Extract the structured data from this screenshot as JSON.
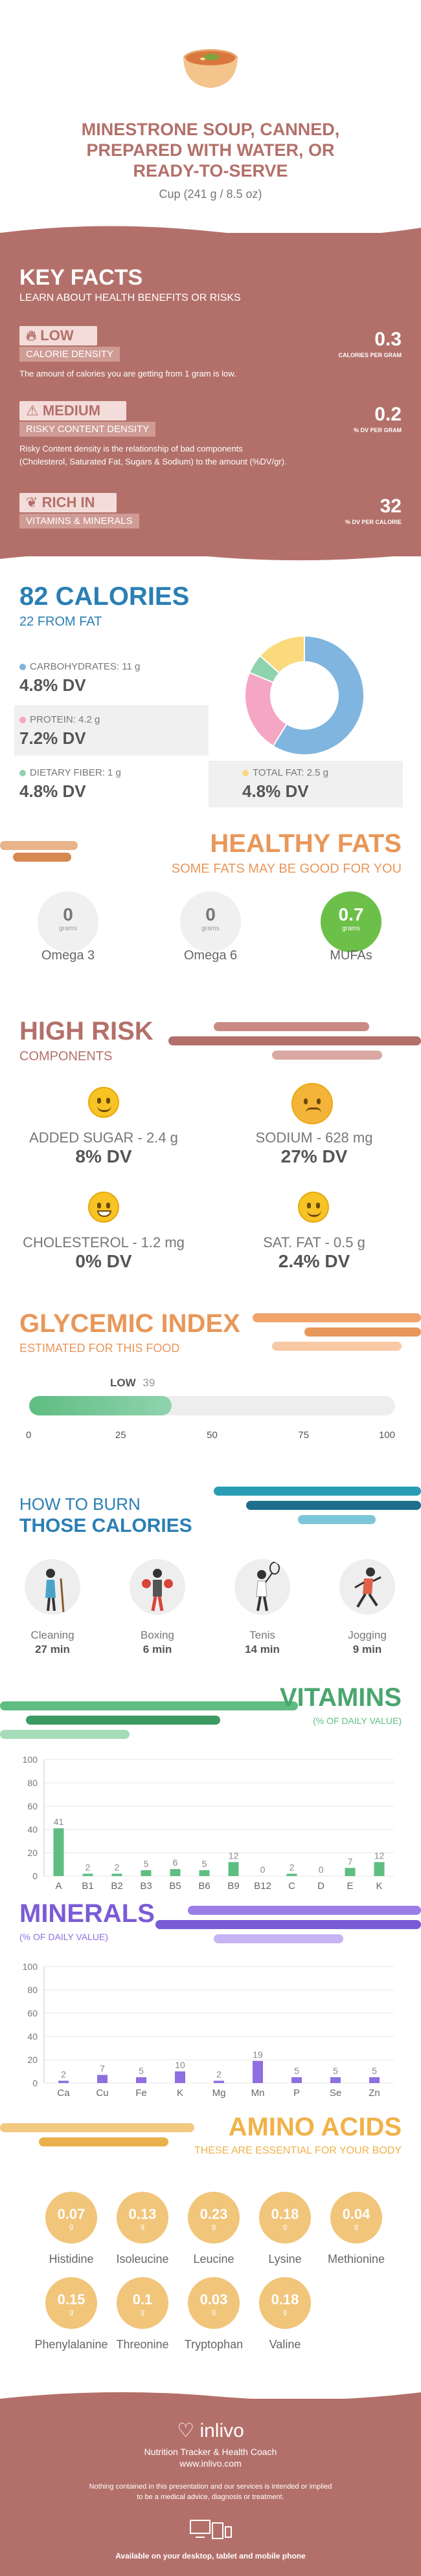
{
  "header": {
    "title_lines": [
      "MINESTRONE SOUP, CANNED,",
      "PREPARED WITH WATER, OR",
      "READY-TO-SERVE"
    ],
    "serving": "Cup (241 g / 8.5 oz)"
  },
  "key_facts": {
    "title": "KEY FACTS",
    "subtitle": "LEARN ABOUT HEALTH BENEFITS OR RISKS",
    "items": [
      {
        "level": "LOW",
        "label": "CALORIE DENSITY",
        "desc_lines": [
          "The amount of calories you are getting from 1 gram is low."
        ],
        "value": "0.3",
        "unit": "CALORIES PER GRAM"
      },
      {
        "level": "MEDIUM",
        "label": "RISKY CONTENT DENSITY",
        "desc_lines": [
          "Risky Content density is the relationship of bad components",
          "(Cholesterol, Saturated Fat, Sugars & Sodium) to the amount (%DV/gr)."
        ],
        "value": "0.2",
        "unit": "% DV PER GRAM"
      },
      {
        "level": "RICH  IN",
        "label": "VITAMINS & MINERALS",
        "desc_lines": [],
        "value": "32",
        "unit": "% DV PER CALORIE"
      }
    ]
  },
  "calories": {
    "title": "82 CALORIES",
    "subtitle": "22 FROM FAT",
    "macros": [
      {
        "label": "CARBOHYDRATES: 11 g",
        "dv": "4.8% DV",
        "color": "#7fb5de"
      },
      {
        "label": "PROTEIN: 4.2 g",
        "dv": "7.2% DV",
        "color": "#f4a6c4"
      },
      {
        "label": "DIETARY FIBER: 1 g",
        "dv": "4.8% DV",
        "color": "#8fd3ae"
      },
      {
        "label": "TOTAL FAT: 2.5 g",
        "dv": "4.8% DV",
        "color": "#fbd97c"
      }
    ],
    "chart_data": {
      "type": "pie",
      "labels": [
        "Carbohydrates",
        "Protein",
        "Dietary Fiber",
        "Total Fat"
      ],
      "values": [
        11,
        4.2,
        1,
        2.5
      ],
      "colors": [
        "#7fb5de",
        "#f4a6c4",
        "#8fd3ae",
        "#fbd97c"
      ]
    }
  },
  "healthy_fats": {
    "title": "HEALTHY FATS",
    "subtitle": "SOME FATS MAY BE GOOD FOR YOU",
    "items": [
      {
        "name": "Omega 3",
        "value": "0",
        "unit": "grams"
      },
      {
        "name": "Omega 6",
        "value": "0",
        "unit": "grams"
      },
      {
        "name": "MUFAs",
        "value": "0.7",
        "unit": "grams"
      }
    ],
    "highlight_color": "#6cc04a"
  },
  "high_risk": {
    "title": "HIGH RISK",
    "subtitle": "COMPONENTS",
    "items": [
      {
        "name": "ADDED SUGAR - 2.4 g",
        "dv": "8% DV"
      },
      {
        "name": "SODIUM - 628 mg",
        "dv": "27% DV"
      },
      {
        "name": "CHOLESTEROL - 1.2 mg",
        "dv": "0% DV"
      },
      {
        "name": "SAT. FAT - 0.5 g",
        "dv": "2.4% DV"
      }
    ]
  },
  "glycemic": {
    "title": "GLYCEMIC INDEX",
    "subtitle": "ESTIMATED FOR THIS FOOD",
    "level": "LOW",
    "value": 39,
    "value_label": "39",
    "ticks": [
      "0",
      "25",
      "50",
      "75",
      "100"
    ]
  },
  "burn": {
    "title_line1": "HOW TO BURN",
    "title_line2": "THOSE CALORIES",
    "activities": [
      {
        "name": "Cleaning",
        "minutes": "27 min",
        "icon": "cleaning-person-icon"
      },
      {
        "name": "Boxing",
        "minutes": "6 min",
        "icon": "boxing-person-icon"
      },
      {
        "name": "Tenis",
        "minutes": "14 min",
        "icon": "tennis-person-icon"
      },
      {
        "name": "Jogging",
        "minutes": "9 min",
        "icon": "jogging-person-icon"
      }
    ]
  },
  "vitamins": {
    "title": "VITAMINS",
    "subtitle": "(% OF DAILY VALUE)",
    "chart_data": {
      "type": "bar",
      "categories": [
        "A",
        "B1",
        "B2",
        "B3",
        "B5",
        "B6",
        "B9",
        "B12",
        "C",
        "D",
        "E",
        "K"
      ],
      "values": [
        41,
        2,
        2,
        5,
        6,
        5,
        12,
        0,
        2,
        0,
        7,
        12
      ],
      "ylim": [
        0,
        100
      ],
      "yticks": [
        0,
        20,
        40,
        60,
        80,
        100
      ],
      "color": "#5fbd82"
    }
  },
  "minerals": {
    "title": "MINERALS",
    "subtitle": "(% OF DAILY VALUE)",
    "chart_data": {
      "type": "bar",
      "categories": [
        "Ca",
        "Cu",
        "Fe",
        "K",
        "Mg",
        "Mn",
        "P",
        "Se",
        "Zn"
      ],
      "values": [
        2,
        7,
        5,
        10,
        2,
        19,
        5,
        5,
        5
      ],
      "ylim": [
        0,
        100
      ],
      "yticks": [
        0,
        20,
        40,
        60,
        80,
        100
      ],
      "color": "#8e6fe0"
    }
  },
  "amino": {
    "title": "AMINO ACIDS",
    "subtitle": "THESE ARE ESSENTIAL FOR YOUR BODY",
    "unit": "g",
    "items": [
      {
        "name": "Histidine",
        "value": "0.07"
      },
      {
        "name": "Isoleucine",
        "value": "0.13"
      },
      {
        "name": "Leucine",
        "value": "0.23"
      },
      {
        "name": "Lysine",
        "value": "0.18"
      },
      {
        "name": "Methionine",
        "value": "0.04"
      },
      {
        "name": "Phenylalanine",
        "value": "0.15"
      },
      {
        "name": "Threonine",
        "value": "0.1"
      },
      {
        "name": "Tryptophan",
        "value": "0.03"
      },
      {
        "name": "Valine",
        "value": "0.18"
      }
    ]
  },
  "footer": {
    "brand": "inlivo",
    "tagline": "Nutrition Tracker & Health Coach",
    "url": "www.inlivo.com",
    "disclaimer_lines": [
      "Nothing contained in this presentation and our services is intended or implied",
      "to be a medical advice, diagnosis or treatment."
    ],
    "available": "Available on your desktop, tablet and mobile phone"
  },
  "colors": {
    "rose": "#b3706a",
    "blue": "#2a7fb4",
    "orange": "#e8975a",
    "green": "#5fbd82",
    "purple": "#8e6fe0",
    "gold": "#f0b24a"
  }
}
